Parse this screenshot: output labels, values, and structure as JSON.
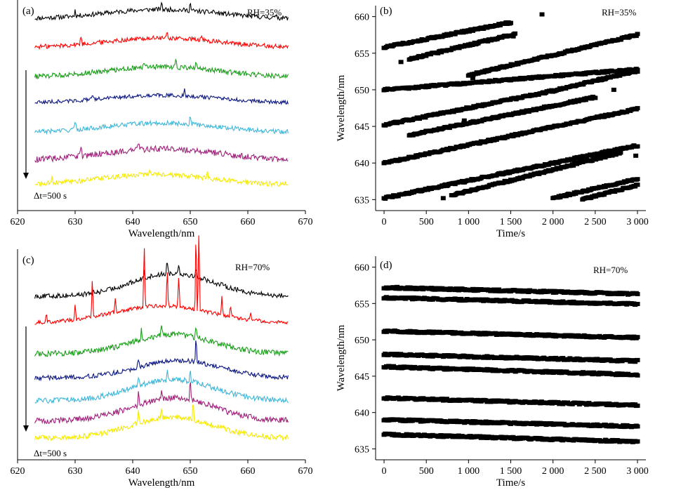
{
  "chart_data": [
    {
      "panel": "(a)",
      "type": "line",
      "xlabel": "Wavelength/nm",
      "ylabel": "",
      "xlim": [
        620,
        670
      ],
      "xticks": [
        620,
        630,
        640,
        650,
        660,
        670
      ],
      "annotation": "RH=35%",
      "arrow_label": "Δt=500 s",
      "x_range": [
        623,
        667
      ],
      "series": [
        {
          "color": "#000000",
          "level": 0.93,
          "hump": 0.05,
          "center": 645,
          "width": 14,
          "noise": 0.012,
          "spikes": [
            [
              630,
              0.03
            ],
            [
              645,
              0.04
            ],
            [
              650,
              0.045
            ],
            [
              654,
              0.02
            ],
            [
              665,
              0.025
            ]
          ]
        },
        {
          "color": "#ff0000",
          "level": 0.78,
          "hump": 0.05,
          "center": 645,
          "width": 14,
          "noise": 0.012,
          "spikes": [
            [
              631,
              0.05
            ],
            [
              646,
              0.04
            ],
            [
              652,
              0.02
            ]
          ]
        },
        {
          "color": "#1a9e1a",
          "level": 0.625,
          "hump": 0.055,
          "center": 645,
          "width": 14,
          "noise": 0.013,
          "spikes": [
            [
              647.5,
              0.06
            ],
            [
              651,
              0.03
            ],
            [
              642,
              0.025
            ]
          ]
        },
        {
          "color": "#0b1680",
          "level": 0.49,
          "hump": 0.04,
          "center": 645,
          "width": 14,
          "noise": 0.01,
          "spikes": [
            [
              649,
              0.04
            ],
            [
              633,
              0.02
            ]
          ]
        },
        {
          "color": "#3fb7d8",
          "level": 0.335,
          "hump": 0.05,
          "center": 645,
          "width": 14,
          "noise": 0.012,
          "spikes": [
            [
              630,
              0.05
            ],
            [
              650,
              0.05
            ],
            [
              640,
              0.025
            ]
          ]
        },
        {
          "color": "#a0207a",
          "level": 0.19,
          "hump": 0.06,
          "center": 645,
          "width": 14,
          "noise": 0.016,
          "spikes": [
            [
              631,
              0.07
            ],
            [
              641,
              0.04
            ],
            [
              646,
              0.03
            ]
          ]
        },
        {
          "color": "#f5ea00",
          "level": 0.06,
          "hump": 0.055,
          "center": 644,
          "width": 14,
          "noise": 0.013,
          "spikes": [
            [
              626,
              0.03
            ],
            [
              643,
              0.035
            ],
            [
              653,
              0.03
            ]
          ]
        }
      ]
    },
    {
      "panel": "(b)",
      "type": "scatter",
      "xlabel": "Time/s",
      "ylabel": "Wavelength/nm",
      "xlim": [
        -100,
        3100
      ],
      "ylim": [
        633.5,
        661.5
      ],
      "xticks": [
        0,
        500,
        1000,
        1500,
        2000,
        2500,
        3000
      ],
      "xtick_labels": [
        "0",
        "500",
        "1 000",
        "1 500",
        "2 000",
        "2 500",
        "3 000"
      ],
      "yticks": [
        635,
        640,
        645,
        650,
        655,
        660
      ],
      "annotation": "RH=35%",
      "series": [
        {
          "t": [
            0,
            1500
          ],
          "wl": [
            655.8,
            659.2
          ]
        },
        {
          "t": [
            300,
            1550
          ],
          "wl": [
            654.2,
            657.6
          ]
        },
        {
          "t": [
            1000,
            3000
          ],
          "wl": [
            652.0,
            657.5
          ]
        },
        {
          "t": [
            0,
            3000
          ],
          "wl": [
            650.0,
            652.8
          ]
        },
        {
          "t": [
            0,
            1900
          ],
          "wl": [
            645.2,
            649.6
          ]
        },
        {
          "t": [
            1900,
            3000
          ],
          "wl": [
            649.6,
            652.6
          ]
        },
        {
          "t": [
            300,
            2500
          ],
          "wl": [
            643.8,
            649.0
          ]
        },
        {
          "t": [
            0,
            3000
          ],
          "wl": [
            640.0,
            647.4
          ]
        },
        {
          "t": [
            0,
            3000
          ],
          "wl": [
            635.2,
            642.4
          ]
        },
        {
          "t": [
            800,
            2800
          ],
          "wl": [
            635.6,
            641.4
          ]
        },
        {
          "t": [
            2000,
            3000
          ],
          "wl": [
            635.2,
            637.8
          ]
        },
        {
          "t": [
            2350,
            3000
          ],
          "wl": [
            635.0,
            637.0
          ]
        }
      ],
      "outliers": [
        {
          "t": 1870,
          "wl": 660.3
        },
        {
          "t": 1530,
          "wl": 657.3
        },
        {
          "t": 1050,
          "wl": 651.6
        },
        {
          "t": 200,
          "wl": 653.8
        },
        {
          "t": 950,
          "wl": 645.8
        },
        {
          "t": 2720,
          "wl": 650.0
        },
        {
          "t": 2980,
          "wl": 641.0
        },
        {
          "t": 2060,
          "wl": 640.0
        },
        {
          "t": 700,
          "wl": 635.2
        }
      ]
    },
    {
      "panel": "(c)",
      "type": "line",
      "xlabel": "Wavelength/nm",
      "ylabel": "",
      "xlim": [
        620,
        670
      ],
      "xticks": [
        620,
        630,
        640,
        650,
        660,
        670
      ],
      "annotation": "RH=70%",
      "arrow_label": "Δt=500 s",
      "x_range": [
        623,
        667
      ],
      "series": [
        {
          "color": "#000000",
          "level": 0.78,
          "hump": 0.12,
          "center": 647,
          "width": 10,
          "noise": 0.013,
          "spikes": [
            [
              642,
              0.05
            ],
            [
              646,
              0.08
            ],
            [
              648,
              0.06
            ],
            [
              651,
              0.04
            ]
          ]
        },
        {
          "color": "#ff0000",
          "level": 0.64,
          "hump": 0.09,
          "center": 645,
          "width": 12,
          "noise": 0.01,
          "spikes": [
            [
              625,
              0.06
            ],
            [
              630,
              0.08
            ],
            [
              633,
              0.22
            ],
            [
              637,
              0.08
            ],
            [
              642,
              0.35
            ],
            [
              646,
              0.22
            ],
            [
              648,
              0.17
            ],
            [
              651,
              0.45
            ],
            [
              651.5,
              0.45
            ],
            [
              655.5,
              0.1
            ],
            [
              657,
              0.07
            ],
            [
              660.5,
              0.05
            ]
          ]
        },
        {
          "color": "#1a9e1a",
          "level": 0.48,
          "hump": 0.1,
          "center": 647,
          "width": 10,
          "noise": 0.015,
          "spikes": [
            [
              641.5,
              0.05
            ],
            [
              645,
              0.04
            ],
            [
              651,
              0.05
            ]
          ]
        },
        {
          "color": "#0b1680",
          "level": 0.355,
          "hump": 0.09,
          "center": 648,
          "width": 10,
          "noise": 0.012,
          "spikes": [
            [
              641,
              0.05
            ],
            [
              651,
              0.15
            ]
          ]
        },
        {
          "color": "#3fb7d8",
          "level": 0.235,
          "hump": 0.11,
          "center": 647,
          "width": 10,
          "noise": 0.014,
          "spikes": [
            [
              641,
              0.06
            ],
            [
              646,
              0.05
            ],
            [
              650,
              0.08
            ]
          ]
        },
        {
          "color": "#a0207a",
          "level": 0.13,
          "hump": 0.12,
          "center": 647,
          "width": 10,
          "noise": 0.015,
          "spikes": [
            [
              641,
              0.06
            ],
            [
              645,
              0.05
            ],
            [
              650,
              0.12
            ]
          ]
        },
        {
          "color": "#f5ea00",
          "level": 0.04,
          "hump": 0.11,
          "center": 647,
          "width": 10,
          "noise": 0.014,
          "spikes": [
            [
              641,
              0.06
            ],
            [
              645,
              0.04
            ],
            [
              650.5,
              0.09
            ]
          ]
        }
      ]
    },
    {
      "panel": "(d)",
      "type": "scatter",
      "xlabel": "Time/s",
      "ylabel": "Wavelength/nm",
      "xlim": [
        -100,
        3100
      ],
      "ylim": [
        633.5,
        661.5
      ],
      "xticks": [
        0,
        500,
        1000,
        1500,
        2000,
        2500,
        3000
      ],
      "xtick_labels": [
        "0",
        "500",
        "1 000",
        "1 500",
        "2 000",
        "2 500",
        "3 000"
      ],
      "yticks": [
        635,
        640,
        645,
        650,
        655,
        660
      ],
      "annotation": "RH=70%",
      "series": [
        {
          "t": [
            0,
            3000
          ],
          "wl": [
            657.2,
            656.3
          ]
        },
        {
          "t": [
            0,
            3000
          ],
          "wl": [
            655.8,
            654.9
          ]
        },
        {
          "t": [
            0,
            3000
          ],
          "wl": [
            651.2,
            650.3
          ]
        },
        {
          "t": [
            0,
            3000
          ],
          "wl": [
            648.0,
            647.1
          ]
        },
        {
          "t": [
            0,
            3000
          ],
          "wl": [
            646.3,
            645.2
          ]
        },
        {
          "t": [
            0,
            3000
          ],
          "wl": [
            642.0,
            641.0
          ]
        },
        {
          "t": [
            0,
            3000
          ],
          "wl": [
            639.0,
            638.1
          ]
        },
        {
          "t": [
            0,
            3000
          ],
          "wl": [
            637.0,
            636.0
          ]
        }
      ]
    }
  ]
}
